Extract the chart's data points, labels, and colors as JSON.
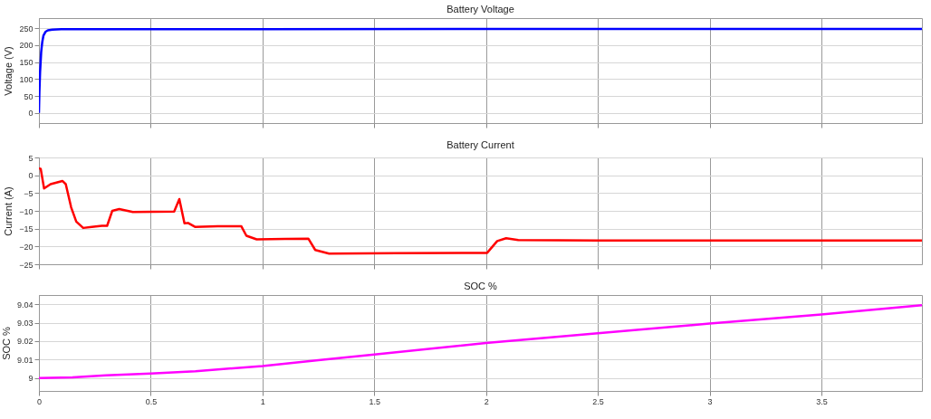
{
  "chart_data": [
    {
      "type": "line",
      "title": "Battery Voltage",
      "ylabel": "Voltage (V)",
      "xlim": [
        0,
        3.95
      ],
      "xticks": [
        0,
        0.5,
        1,
        1.5,
        2,
        2.5,
        3,
        3.5
      ],
      "ylim": [
        -30,
        280
      ],
      "yticks": [
        0,
        50,
        100,
        150,
        200,
        250
      ],
      "grid": true,
      "tick_labels": "y",
      "series": [
        {
          "color": "#0000ff",
          "x": [
            0,
            0.002,
            0.005,
            0.01,
            0.015,
            0.02,
            0.03,
            0.04,
            0.06,
            0.1,
            0.5,
            1,
            2,
            3,
            3.95
          ],
          "values": [
            0,
            60,
            120,
            180,
            210,
            228,
            240,
            244,
            246,
            247,
            247,
            247,
            248,
            248,
            248
          ]
        }
      ]
    },
    {
      "type": "line",
      "title": "Battery Current",
      "ylabel": "Current (A)",
      "xlim": [
        0,
        3.95
      ],
      "xticks": [
        0,
        0.5,
        1,
        1.5,
        2,
        2.5,
        3,
        3.5
      ],
      "ylim": [
        -25,
        5
      ],
      "yticks": [
        -25,
        -20,
        -15,
        -10,
        -5,
        0,
        5
      ],
      "grid": true,
      "tick_labels": "y",
      "series": [
        {
          "color": "#ff0000",
          "x": [
            0,
            0.008,
            0.023,
            0.052,
            0.105,
            0.12,
            0.144,
            0.167,
            0.198,
            0.236,
            0.282,
            0.305,
            0.328,
            0.359,
            0.42,
            0.605,
            0.628,
            0.651,
            0.667,
            0.698,
            0.8,
            0.905,
            0.928,
            0.974,
            1.1,
            1.205,
            1.236,
            1.298,
            1.6,
            2.005,
            2.05,
            2.09,
            2.144,
            2.5,
            3,
            3.5,
            3.95
          ],
          "values": [
            2,
            1.8,
            -3.7,
            -2.5,
            -1.6,
            -2.5,
            -9,
            -13,
            -14.8,
            -14.5,
            -14.2,
            -14.2,
            -10,
            -9.5,
            -10.3,
            -10.2,
            -6.7,
            -13.5,
            -13.4,
            -14.5,
            -14.3,
            -14.3,
            -17,
            -18,
            -17.9,
            -17.8,
            -21,
            -22,
            -21.9,
            -21.8,
            -18.5,
            -17.7,
            -18.2,
            -18.3,
            -18.3,
            -18.3,
            -18.3
          ]
        }
      ]
    },
    {
      "type": "line",
      "title": "SOC %",
      "ylabel": "SOC %",
      "xlim": [
        0,
        3.95
      ],
      "xticks": [
        0,
        0.5,
        1,
        1.5,
        2,
        2.5,
        3,
        3.5
      ],
      "ylim": [
        8.993,
        9.045
      ],
      "yticks": [
        9,
        9.01,
        9.02,
        9.03,
        9.04
      ],
      "grid": true,
      "series": [
        {
          "color": "#ff00ff",
          "x": [
            0,
            0.15,
            0.3,
            0.5,
            0.7,
            1,
            1.25,
            1.5,
            2,
            2.5,
            3,
            3.5,
            3.95
          ],
          "values": [
            9,
            9.0003,
            9.0015,
            9.0025,
            9.0037,
            9.0065,
            9.0097,
            9.0128,
            9.019,
            9.0243,
            9.0295,
            9.0345,
            9.0395
          ]
        }
      ]
    }
  ]
}
